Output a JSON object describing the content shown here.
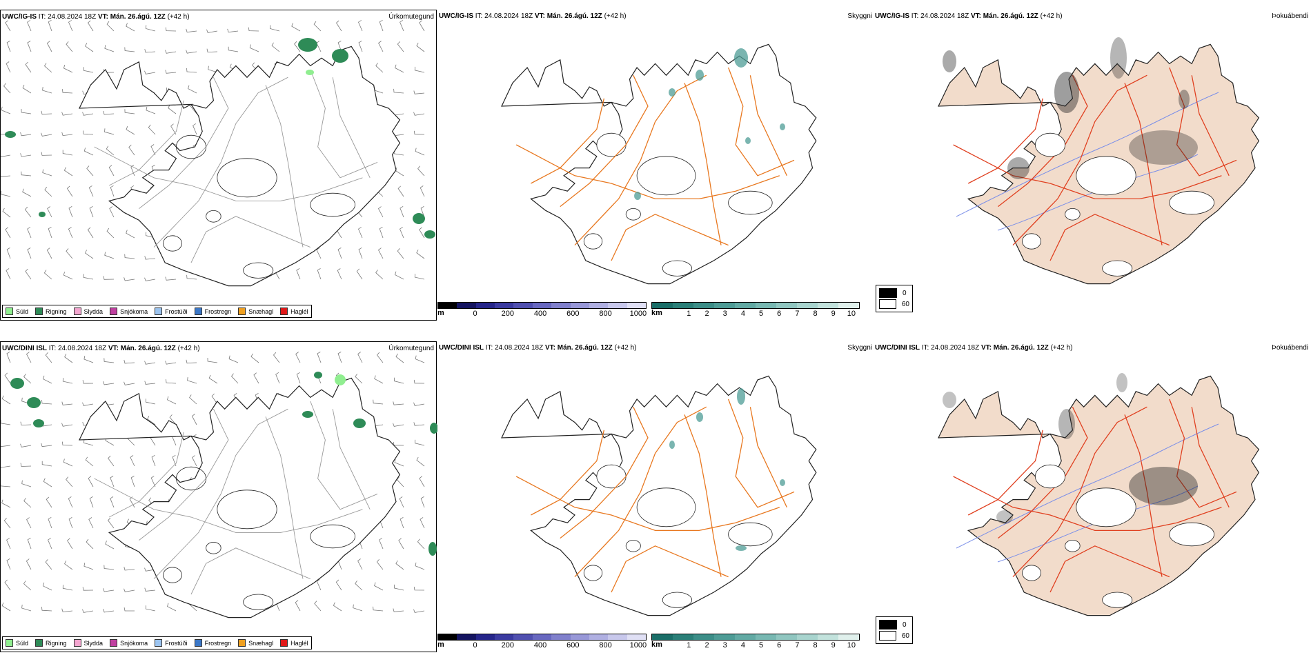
{
  "rows": [
    {
      "model": "UWC/IG-IS",
      "it_label": "IT:",
      "it_value": "24.08.2024 18Z",
      "vt_label": "VT:",
      "vt_value": "Mán. 26.ágú. 12Z",
      "lead": "(+42 h)"
    },
    {
      "model": "UWC/DINI ISL",
      "it_label": "IT:",
      "it_value": "24.08.2024 18Z",
      "vt_label": "VT:",
      "vt_value": "Mán. 26.ágú. 12Z",
      "lead": "(+42 h)"
    }
  ],
  "panel_titles": {
    "precip": "Úrkomutegund",
    "visibility": "Skyggni",
    "fog": "Þokuábendi"
  },
  "precip_legend": [
    {
      "label": "Súld",
      "color": "#90ee90"
    },
    {
      "label": "Rigning",
      "color": "#2e8b57"
    },
    {
      "label": "Slydda",
      "color": "#f4a6d0"
    },
    {
      "label": "Snjókoma",
      "color": "#c040a0"
    },
    {
      "label": "Frostúði",
      "color": "#9cc4f0"
    },
    {
      "label": "Frostregn",
      "color": "#3c78c8"
    },
    {
      "label": "Snæhagl",
      "color": "#f0a020"
    },
    {
      "label": "Haglél",
      "color": "#e01818"
    }
  ],
  "height_bar": {
    "unit": "m",
    "ticks": [
      "0",
      "200",
      "400",
      "600",
      "800",
      "1000"
    ],
    "colors": [
      "#000000",
      "#141460",
      "#25258a",
      "#3a3aa0",
      "#5050b0",
      "#6868c0",
      "#8080cc",
      "#9898d8",
      "#b0b0e2",
      "#c8c8ec",
      "#e0e0f5"
    ]
  },
  "visibility_bar": {
    "unit": "km",
    "ticks": [
      "1",
      "2",
      "3",
      "4",
      "5",
      "6",
      "7",
      "8",
      "9",
      "10"
    ],
    "colors": [
      "#1a6e68",
      "#2a7f78",
      "#3c8e88",
      "#4e9c96",
      "#62aaa4",
      "#78b8b2",
      "#90c6c0",
      "#a8d4ce",
      "#c2e2dc",
      "#e0f0ec"
    ]
  },
  "fog_legend": [
    {
      "label": "0",
      "color": "#000000"
    },
    {
      "label": "60",
      "color": "#ffffff"
    }
  ],
  "map_colors": {
    "coast": "#222222",
    "roads": "#e87820",
    "fog_land": "#f2dccb",
    "fog_roads": "#e04020",
    "rivers": "#7b8fe8",
    "barb": "#777777"
  }
}
